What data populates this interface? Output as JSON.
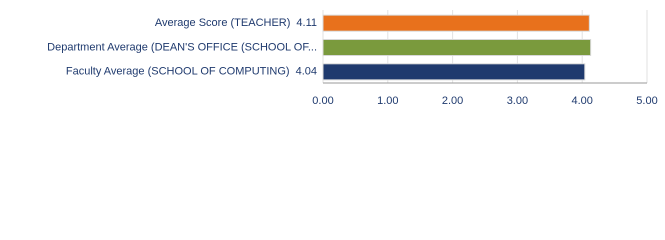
{
  "chart_data": {
    "type": "bar",
    "orientation": "horizontal",
    "categories": [
      "Average Score (TEACHER)",
      "Department Average (DEAN'S OFFICE (SCHOOL OF...",
      "Faculty Average (SCHOOL OF COMPUTING)"
    ],
    "values": [
      4.11,
      4.13,
      4.04
    ],
    "value_labels": [
      "4.11",
      null,
      "4.04"
    ],
    "colors": [
      "#e8711c",
      "#7a9a3d",
      "#1f3a6e"
    ],
    "xlim": [
      0,
      5
    ],
    "xticks": [
      {
        "value": 0,
        "label": "0.00"
      },
      {
        "value": 1,
        "label": "1.00"
      },
      {
        "value": 2,
        "label": "2.00"
      },
      {
        "value": 3,
        "label": "3.00"
      },
      {
        "value": 4,
        "label": "4.00"
      },
      {
        "value": 5,
        "label": "5.00"
      }
    ],
    "grid": true
  }
}
